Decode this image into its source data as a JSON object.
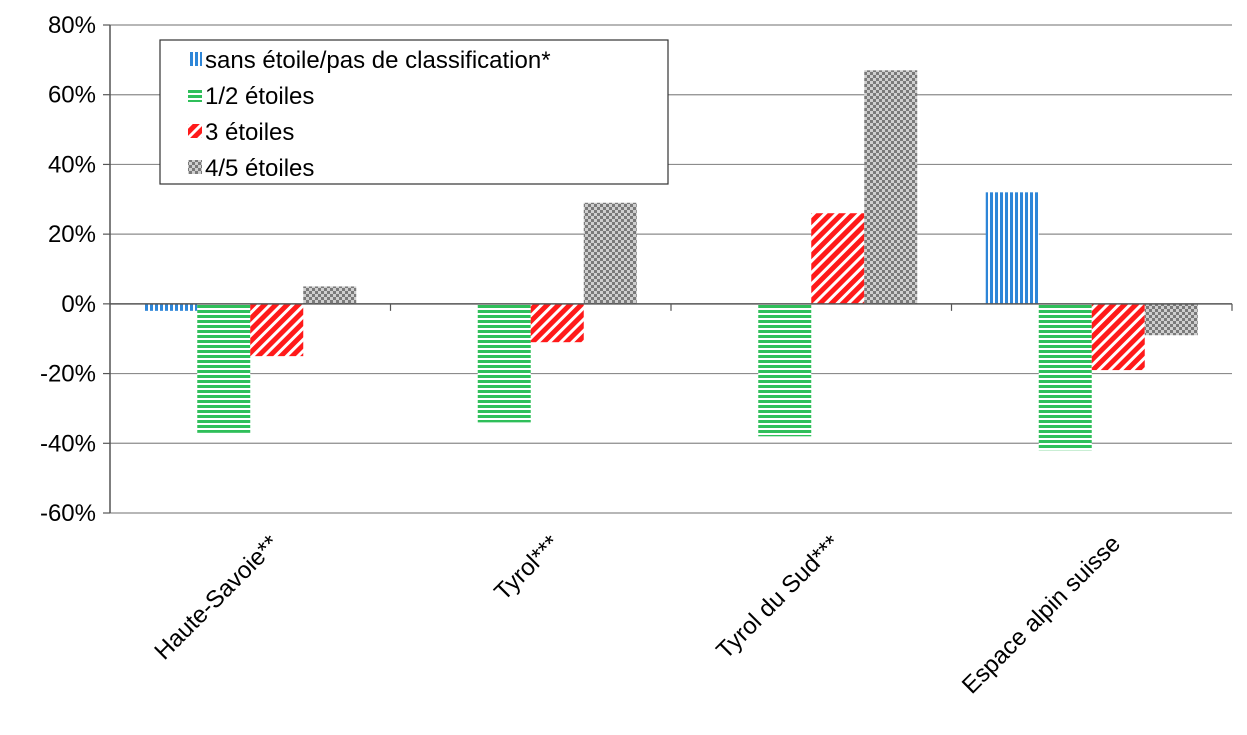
{
  "chart_data": {
    "type": "bar",
    "categories": [
      "Haute-Savoie**",
      "Tyrol***",
      "Tyrol du Sud***",
      "Espace alpin suisse"
    ],
    "series": [
      {
        "name": "sans étoile/pas de classification*",
        "values": [
          -2,
          0,
          0,
          32
        ],
        "color": "#2e86d8",
        "pattern": "vertical-lines"
      },
      {
        "name": "1/2 étoiles",
        "values": [
          -37,
          -34,
          -38,
          -42
        ],
        "color": "#2fbf5a",
        "pattern": "horizontal-lines"
      },
      {
        "name": "3 étoiles",
        "values": [
          -15,
          -11,
          26,
          -19
        ],
        "color": "#ff1a1a",
        "pattern": "diagonal-lines"
      },
      {
        "name": "4/5 étoiles",
        "values": [
          5,
          29,
          67,
          -9
        ],
        "color": "#7a7a7a",
        "pattern": "checker"
      }
    ],
    "yticks": [
      "80%",
      "60%",
      "40%",
      "20%",
      "0%",
      "-20%",
      "-40%",
      "-60%"
    ],
    "ylim": [
      -60,
      80
    ],
    "ytick_step": 20,
    "grid": true,
    "legend_position": "top-left",
    "title": "",
    "xlabel": "",
    "ylabel": ""
  }
}
